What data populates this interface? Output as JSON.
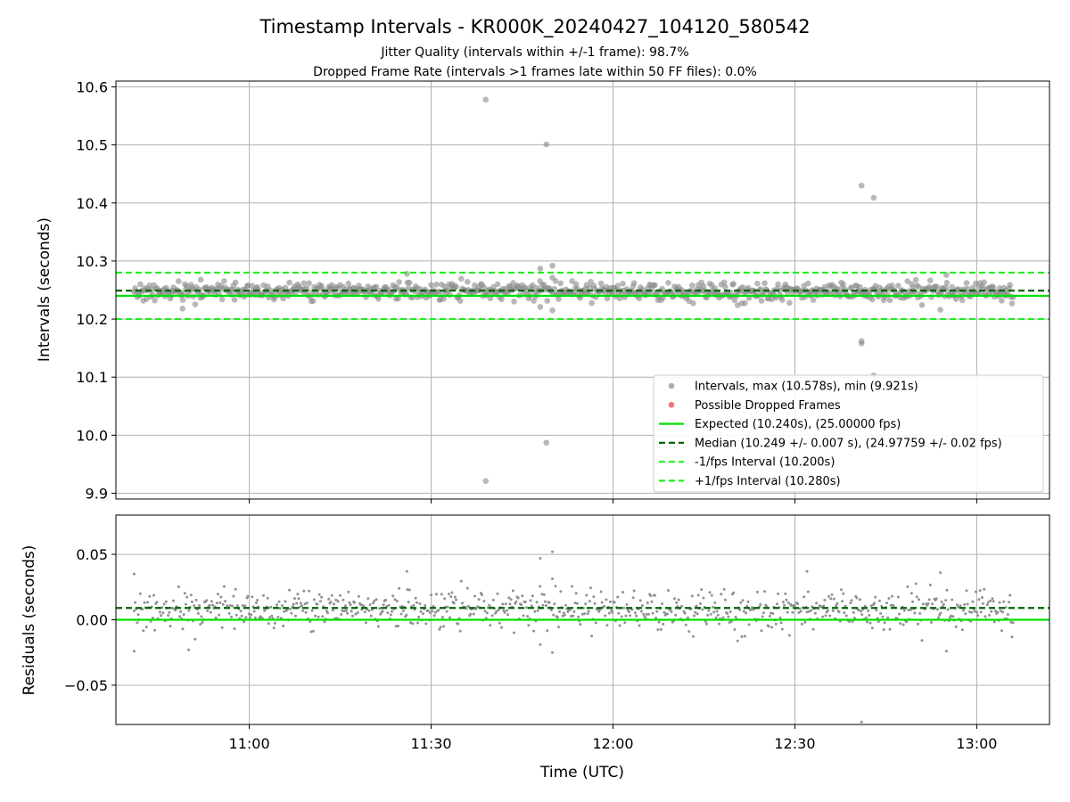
{
  "title": "Timestamp Intervals - KR000K_20240427_104120_580542",
  "subtitle_lines": [
    "Jitter Quality (intervals within +/-1 frame): 98.7%",
    "Dropped Frame Rate (intervals >1 frames late within 50 FF files): 0.0%"
  ],
  "colors": {
    "points": "#8c8c8c",
    "dropped": "#e8383d",
    "expected": "#00e000",
    "median": "#006400",
    "interval": "#22ee22",
    "grid": "#b0b0b0"
  },
  "chart_data": [
    {
      "type": "scatter",
      "ylabel": "Intervals (seconds)",
      "xlim": [
        "10:38",
        "13:12"
      ],
      "ylim": [
        9.89,
        10.61
      ],
      "xticks": [
        "11:00",
        "11:30",
        "12:00",
        "12:30",
        "13:00"
      ],
      "yticks": [
        9.9,
        10.0,
        10.1,
        10.2,
        10.3,
        10.4,
        10.5,
        10.6
      ],
      "ytick_labels": [
        "9.9",
        "10.0",
        "10.1",
        "10.2",
        "10.3",
        "10.4",
        "10.5",
        "10.6"
      ],
      "grid": true,
      "legend_position": "lower-right",
      "series": [
        {
          "name": "Intervals, max (10.578s), min (9.921s)",
          "kind": "points",
          "time_range": [
            "10:41",
            "13:06"
          ],
          "count": 850,
          "typical_range": [
            10.233,
            10.263
          ]
        },
        {
          "name": "Possible Dropped Frames",
          "kind": "points",
          "count": 0
        }
      ],
      "outliers": [
        {
          "x": "11:39",
          "y": 10.578
        },
        {
          "x": "11:49",
          "y": 10.501
        },
        {
          "x": "11:49",
          "y": 9.987
        },
        {
          "x": "11:39",
          "y": 9.921
        },
        {
          "x": "12:41",
          "y": 10.43
        },
        {
          "x": "12:43",
          "y": 10.409
        },
        {
          "x": "12:41",
          "y": 10.162
        },
        {
          "x": "12:41",
          "y": 10.158
        },
        {
          "x": "12:43",
          "y": 10.103
        },
        {
          "x": "11:48",
          "y": 10.287
        },
        {
          "x": "11:50",
          "y": 10.292
        },
        {
          "x": "11:48",
          "y": 10.221
        },
        {
          "x": "11:50",
          "y": 10.215
        },
        {
          "x": "10:52",
          "y": 10.268
        },
        {
          "x": "11:26",
          "y": 10.278
        },
        {
          "x": "12:55",
          "y": 10.276
        },
        {
          "x": "10:49",
          "y": 10.218
        },
        {
          "x": "12:54",
          "y": 10.216
        }
      ],
      "reference_lines": [
        {
          "name": "Expected (10.240s), (25.00000 fps)",
          "y": 10.24,
          "style": "solid"
        },
        {
          "name": "Median (10.249 +/- 0.007 s), (24.97759 +/- 0.02 fps)",
          "y": 10.249,
          "style": "dashed"
        },
        {
          "name": "-1/fps Interval (10.200s)",
          "y": 10.2,
          "style": "dashed"
        },
        {
          "name": "+1/fps Interval (10.280s)",
          "y": 10.28,
          "style": "dashed"
        }
      ]
    },
    {
      "type": "scatter",
      "xlabel": "Time (UTC)",
      "ylabel": "Residuals (seconds)",
      "xlim": [
        "10:38",
        "13:12"
      ],
      "ylim": [
        -0.08,
        0.08
      ],
      "xticks": [
        "11:00",
        "11:30",
        "12:00",
        "12:30",
        "13:00"
      ],
      "yticks": [
        -0.05,
        0.0,
        0.05
      ],
      "ytick_labels": [
        "−0.05",
        "0.00",
        "0.05"
      ],
      "grid": true,
      "series": [
        {
          "kind": "points",
          "time_range": [
            "10:41",
            "13:06"
          ],
          "count": 850,
          "typical_range": [
            -0.007,
            0.023
          ]
        }
      ],
      "outliers": [
        {
          "x": "11:48",
          "y": 0.047
        },
        {
          "x": "11:50",
          "y": 0.052
        },
        {
          "x": "11:48",
          "y": -0.019
        },
        {
          "x": "11:50",
          "y": -0.025
        },
        {
          "x": "12:41",
          "y": -0.078
        },
        {
          "x": "10:41",
          "y": 0.035
        },
        {
          "x": "10:41",
          "y": -0.024
        },
        {
          "x": "10:50",
          "y": -0.023
        },
        {
          "x": "11:26",
          "y": 0.037
        },
        {
          "x": "12:32",
          "y": 0.037
        },
        {
          "x": "12:54",
          "y": 0.036
        },
        {
          "x": "12:55",
          "y": -0.024
        }
      ],
      "reference_lines": [
        {
          "y": 0.0,
          "style": "solid"
        },
        {
          "y": 0.009,
          "style": "dashed"
        }
      ]
    }
  ]
}
